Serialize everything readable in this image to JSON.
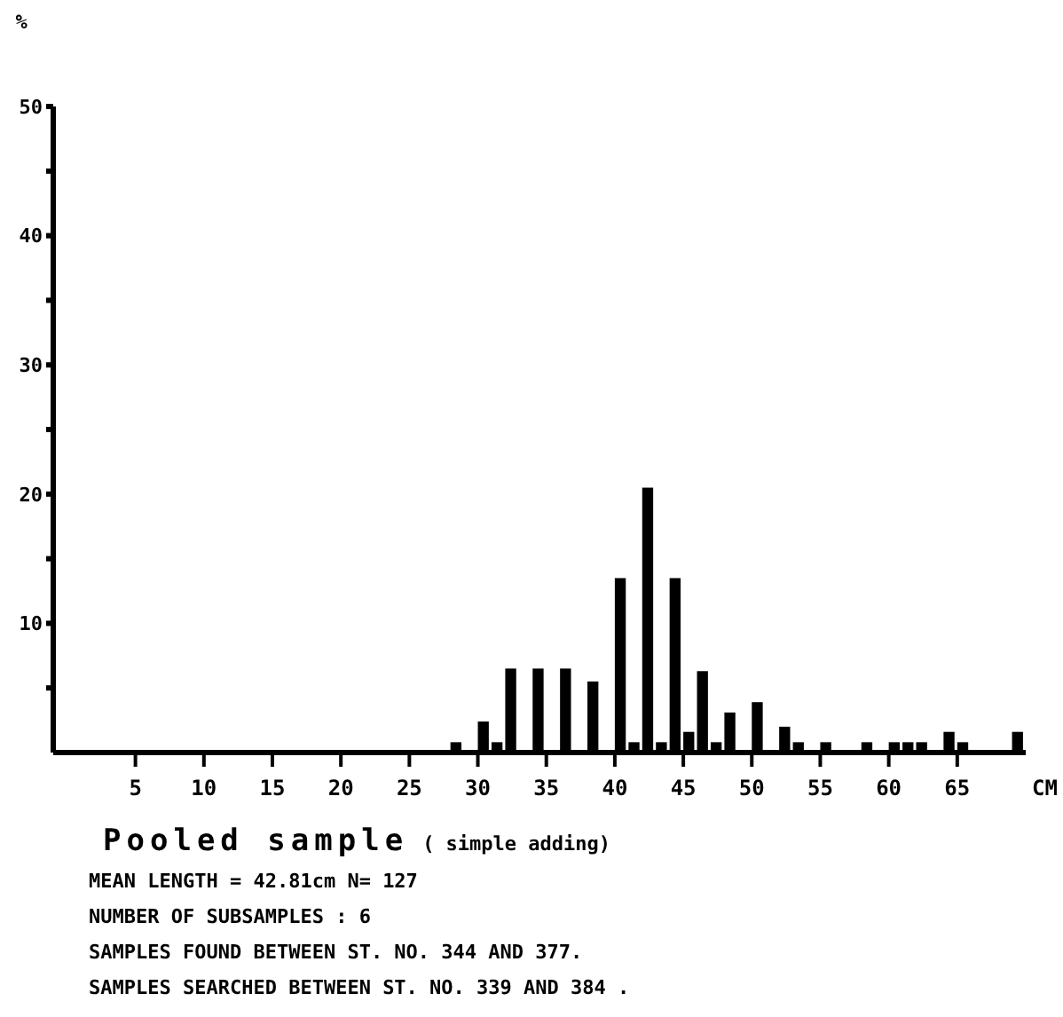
{
  "chart_data": {
    "type": "histogram",
    "title": "Pooled sample",
    "subtitle": "( simple adding)",
    "xlabel": "CM",
    "ylabel": "%",
    "bins": [
      0,
      1,
      2,
      3,
      4,
      5,
      6,
      7,
      8,
      9,
      10,
      11,
      12,
      13,
      14,
      15,
      16,
      17,
      18,
      19,
      20,
      21,
      22,
      23,
      24,
      25,
      26,
      27,
      28,
      29,
      30,
      31,
      32,
      33,
      34,
      35,
      36,
      37,
      38,
      39,
      40,
      41,
      42,
      43,
      44,
      45,
      46,
      47,
      48,
      49,
      50,
      51,
      52,
      53,
      54,
      55,
      56,
      57,
      58,
      59,
      60,
      61,
      62,
      63,
      64,
      65,
      66,
      67,
      68,
      69,
      70
    ],
    "values": [
      0,
      0,
      0,
      0,
      0,
      0,
      0,
      0,
      0,
      0,
      0,
      0,
      0,
      0,
      0,
      0,
      0,
      0,
      0,
      0,
      0,
      0,
      0,
      0,
      0,
      0,
      0,
      0,
      0.8,
      0,
      2.4,
      0.8,
      6.5,
      0,
      6.5,
      0,
      6.5,
      0,
      5.5,
      0,
      13.5,
      0.8,
      20.5,
      0.8,
      13.5,
      1.6,
      6.3,
      0.8,
      3.1,
      0,
      3.9,
      0,
      2,
      0.8,
      0,
      0.8,
      0,
      0,
      0.8,
      0,
      0.8,
      0.8,
      0.8,
      0,
      1.6,
      0.8,
      0,
      0,
      0,
      1.6
    ],
    "color": "#000000",
    "xlim": [
      -1,
      70
    ],
    "xticks": [
      5,
      10,
      15,
      20,
      25,
      30,
      35,
      40,
      45,
      50,
      55,
      60,
      65
    ],
    "ylim": [
      0,
      50
    ],
    "yticks": [
      {
        "value": 5,
        "label": null
      },
      10,
      {
        "value": 15,
        "label": null
      },
      20,
      {
        "value": 25,
        "label": null
      },
      30,
      {
        "value": 35,
        "label": null
      },
      40,
      {
        "value": 45,
        "label": null
      },
      50
    ],
    "grid": false,
    "annotations": [
      "MEAN LENGTH = 42.81cm  N=  127",
      "NUMBER OF SUBSAMPLES :  6",
      "SAMPLES FOUND BETWEEN ST. NO. 344 AND  377.",
      "SAMPLES SEARCHED BETWEEN ST. NO. 339 AND  384 ."
    ]
  }
}
